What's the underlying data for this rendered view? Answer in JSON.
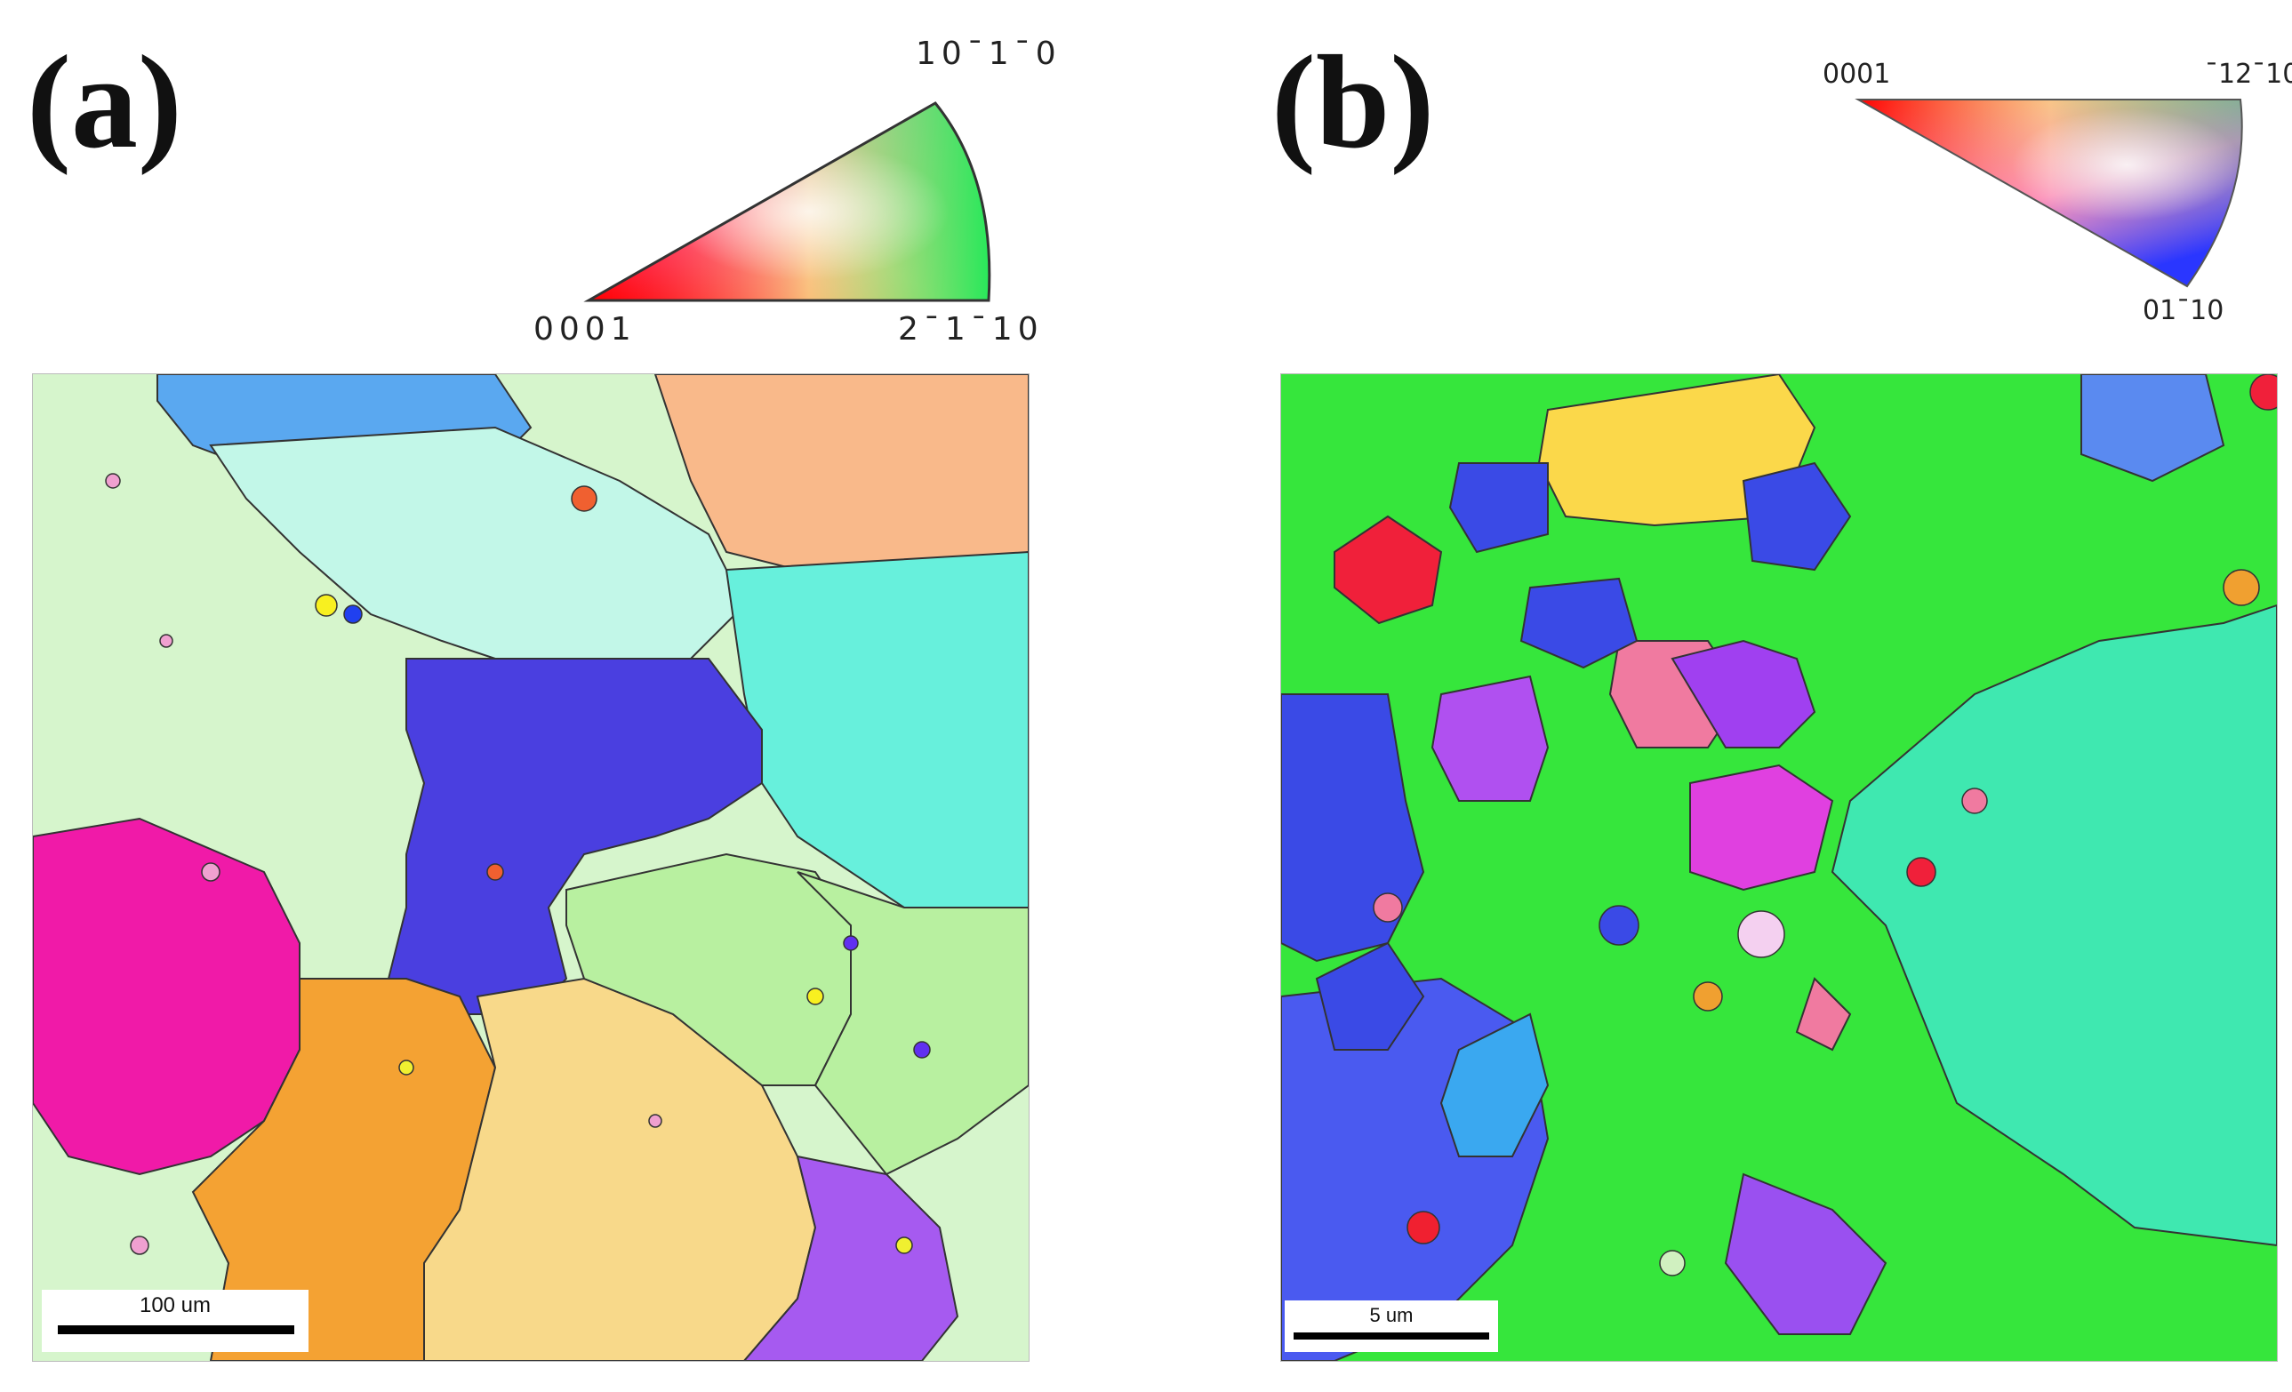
{
  "panels": {
    "a": {
      "label": "(a)",
      "legend": {
        "corner_top": "10¯1¯0",
        "corner_left": "0001",
        "corner_right": "2¯1¯10"
      },
      "scale_label": "100 um",
      "colors": {
        "background": "#d6f5cc",
        "grain_blue": "#4a3fe0",
        "grain_pink": "#f01aa8",
        "grain_orange": "#f4a233",
        "grain_yellow": "#f8d98a",
        "grain_cyan": "#67f0dc",
        "grain_salmon": "#f9b98a",
        "grain_purple": "#a65af0",
        "grain_sky": "#5aa8f0",
        "grain_mint": "#c2f7e8",
        "grain_green": "#b8f0a0"
      }
    },
    "b": {
      "label": "(b)",
      "legend": {
        "corner_left": "0001",
        "corner_right": "¯12¯10",
        "corner_bottom": "01¯10"
      },
      "scale_label": "5 um",
      "colors": {
        "background": "#36e63c",
        "grain_teal": "#3fe8b0",
        "grain_blue": "#3a4ae6",
        "grain_yellow": "#fbd84a",
        "grain_magenta": "#e040e0",
        "grain_red": "#f0203a",
        "grain_pink": "#f07aa0"
      }
    }
  }
}
